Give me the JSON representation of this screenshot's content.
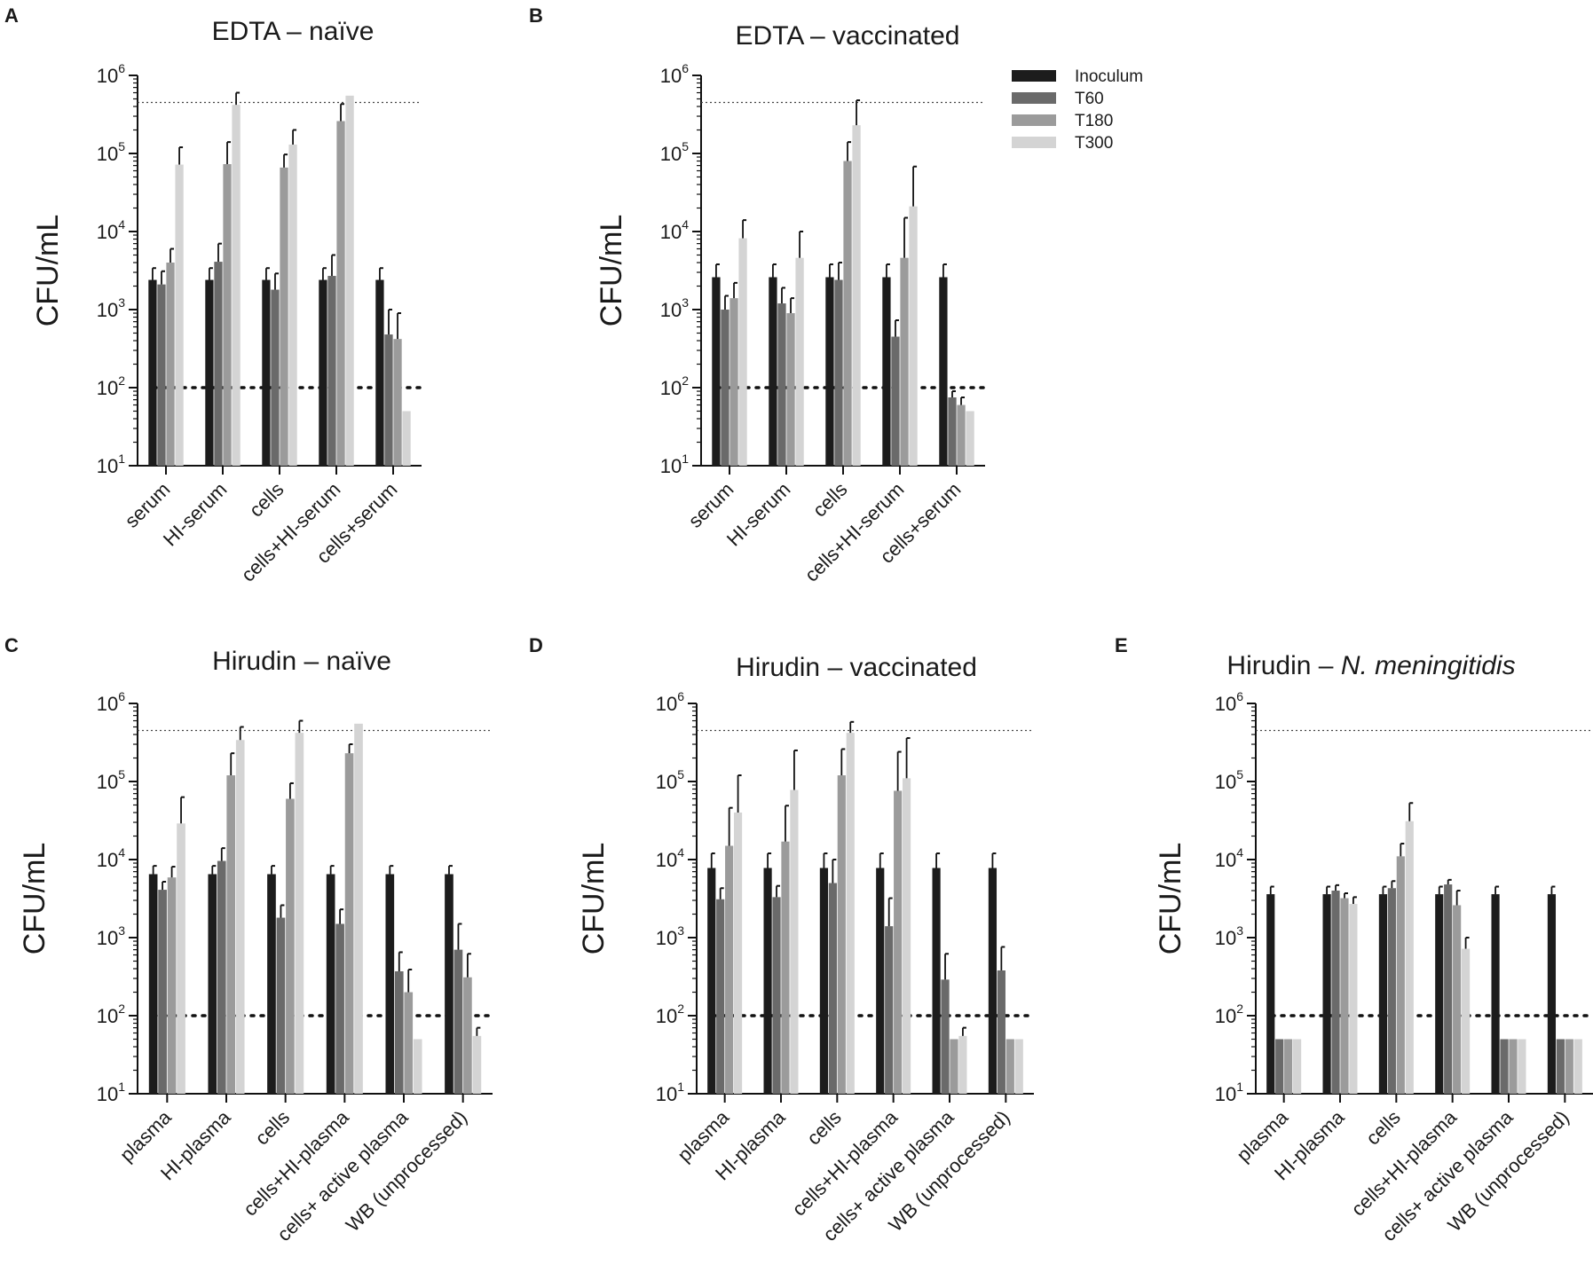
{
  "colors": {
    "Inoculum": "#1c1c1c",
    "T60": "#6a6a6a",
    "T180": "#9b9b9b",
    "T300": "#d4d4d4",
    "axis": "#111111"
  },
  "legend": [
    "Inoculum",
    "T60",
    "T180",
    "T300"
  ],
  "y_axis": {
    "label": "CFU/mL",
    "base": "10",
    "exponents": [
      "1",
      "2",
      "3",
      "4",
      "5",
      "6"
    ],
    "ylim": [
      10,
      1000000
    ],
    "scale": "log"
  },
  "chart_data": [
    {
      "type": "bar",
      "panel": "A",
      "title": "EDTA – naïve",
      "ylabel": "CFU/mL",
      "categories": [
        "serum",
        "HI-serum",
        "cells",
        "cells+HI-serum",
        "cells+serum"
      ],
      "detection_limit": 100,
      "upper_reference": 450000,
      "series": [
        {
          "name": "Inoculum",
          "values": [
            2400,
            2400,
            2400,
            2400,
            2400
          ],
          "errors": [
            3400,
            3400,
            3400,
            3400,
            3400
          ]
        },
        {
          "name": "T60",
          "values": [
            2100,
            4100,
            1800,
            2700,
            480
          ],
          "errors": [
            3100,
            7000,
            2900,
            5000,
            1000
          ]
        },
        {
          "name": "T180",
          "values": [
            4000,
            73000,
            66000,
            260000,
            420
          ],
          "errors": [
            6000,
            140000,
            97000,
            430000,
            900
          ]
        },
        {
          "name": "T300",
          "values": [
            72000,
            420000,
            130000,
            550000,
            50
          ],
          "errors": [
            120000,
            600000,
            200000,
            null,
            null
          ]
        }
      ]
    },
    {
      "type": "bar",
      "panel": "B",
      "title": "EDTA – vaccinated",
      "ylabel": "CFU/mL",
      "categories": [
        "serum",
        "HI-serum",
        "cells",
        "cells+HI-serum",
        "cells+serum"
      ],
      "detection_limit": 100,
      "upper_reference": 450000,
      "series": [
        {
          "name": "Inoculum",
          "values": [
            2600,
            2600,
            2600,
            2600,
            2600
          ],
          "errors": [
            3800,
            3800,
            3800,
            3800,
            3800
          ]
        },
        {
          "name": "T60",
          "values": [
            1000,
            1200,
            2400,
            450,
            75
          ],
          "errors": [
            1500,
            1900,
            4000,
            730,
            90
          ]
        },
        {
          "name": "T180",
          "values": [
            1400,
            900,
            80000,
            4600,
            60
          ],
          "errors": [
            2200,
            1400,
            140000,
            15000,
            75
          ]
        },
        {
          "name": "T300",
          "values": [
            8200,
            4600,
            230000,
            21000,
            50
          ],
          "errors": [
            14000,
            10000,
            480000,
            68000,
            null
          ]
        }
      ]
    },
    {
      "type": "bar",
      "panel": "C",
      "title": "Hirudin – naïve",
      "ylabel": "CFU/mL",
      "categories": [
        "plasma",
        "HI-plasma",
        "cells",
        "cells+HI-plasma",
        "cells+ active plasma",
        "WB (unprocessed)"
      ],
      "detection_limit": 100,
      "upper_reference": 450000,
      "series": [
        {
          "name": "Inoculum",
          "values": [
            6500,
            6500,
            6500,
            6500,
            6500,
            6500
          ],
          "errors": [
            8300,
            8300,
            8300,
            8300,
            8300,
            8300
          ]
        },
        {
          "name": "T60",
          "values": [
            4100,
            9600,
            1800,
            1500,
            370,
            700
          ],
          "errors": [
            5200,
            14000,
            2600,
            2300,
            650,
            1500
          ]
        },
        {
          "name": "T180",
          "values": [
            5900,
            120000,
            60000,
            230000,
            200,
            310
          ],
          "errors": [
            8100,
            230000,
            95000,
            300000,
            390,
            620
          ]
        },
        {
          "name": "T300",
          "values": [
            29000,
            340000,
            420000,
            550000,
            50,
            55
          ],
          "errors": [
            63000,
            500000,
            600000,
            null,
            null,
            70
          ]
        }
      ]
    },
    {
      "type": "bar",
      "panel": "D",
      "title": "Hirudin – vaccinated",
      "ylabel": "CFU/mL",
      "categories": [
        "plasma",
        "HI-plasma",
        "cells",
        "cells+HI-plasma",
        "cells+ active plasma",
        "WB (unprocessed)"
      ],
      "detection_limit": 100,
      "upper_reference": 450000,
      "series": [
        {
          "name": "Inoculum",
          "values": [
            7800,
            7800,
            7800,
            7800,
            7800,
            7800
          ],
          "errors": [
            12000,
            12000,
            12000,
            12000,
            12000,
            12000
          ]
        },
        {
          "name": "T60",
          "values": [
            3100,
            3300,
            5000,
            1400,
            290,
            380
          ],
          "errors": [
            4300,
            4600,
            10000,
            3200,
            620,
            760
          ]
        },
        {
          "name": "T180",
          "values": [
            15000,
            17000,
            120000,
            76000,
            50,
            50
          ],
          "errors": [
            46000,
            49000,
            260000,
            240000,
            null,
            null
          ]
        },
        {
          "name": "T300",
          "values": [
            40000,
            78000,
            420000,
            110000,
            55,
            50
          ],
          "errors": [
            120000,
            250000,
            580000,
            360000,
            70,
            null
          ]
        }
      ]
    },
    {
      "type": "bar",
      "panel": "E",
      "title": "Hirudin – N. meningitidis",
      "title_prefix": "Hirudin –",
      "title_italic": "N. meningitidis",
      "ylabel": "CFU/mL",
      "categories": [
        "plasma",
        "HI-plasma",
        "cells",
        "cells+HI-plasma",
        "cells+ active plasma",
        "WB (unprocessed)"
      ],
      "detection_limit": 100,
      "upper_reference": 450000,
      "series": [
        {
          "name": "Inoculum",
          "values": [
            3600,
            3600,
            3600,
            3600,
            3600,
            3600
          ],
          "errors": [
            4500,
            4500,
            4500,
            4500,
            4500,
            4500
          ]
        },
        {
          "name": "T60",
          "values": [
            50,
            4000,
            4300,
            4800,
            50,
            50
          ],
          "errors": [
            null,
            4700,
            5300,
            5500,
            null,
            null
          ]
        },
        {
          "name": "T180",
          "values": [
            50,
            3200,
            11000,
            2600,
            50,
            50
          ],
          "errors": [
            null,
            3700,
            16000,
            4000,
            null,
            null
          ]
        },
        {
          "name": "T300",
          "values": [
            50,
            2700,
            31000,
            720,
            50,
            50
          ],
          "errors": [
            null,
            3300,
            53000,
            1000,
            null,
            null
          ]
        }
      ]
    }
  ]
}
